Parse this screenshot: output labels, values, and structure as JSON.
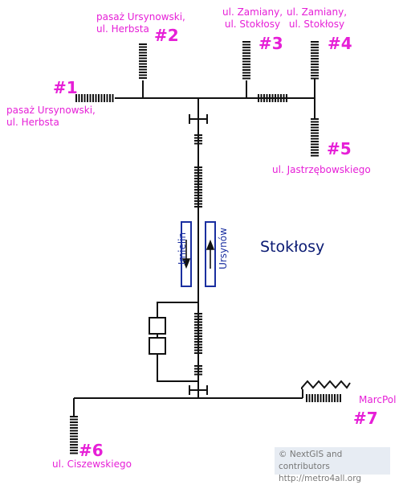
{
  "colors": {
    "accent": "#e61fd7",
    "station_name": "#0a1a73",
    "direction": "#1a2fa0",
    "line": "#111111",
    "credit_text": "#777777",
    "credit_bg": "#e7ecf3"
  },
  "station": {
    "name": "Stokłosy"
  },
  "directions": [
    {
      "label": "Imielin",
      "arrow": "down"
    },
    {
      "label": "Ursynów",
      "arrow": "up"
    }
  ],
  "exits": [
    {
      "number": "#1",
      "street_lines": [
        "pasaż Ursynowski,",
        "ul. Herbsta"
      ]
    },
    {
      "number": "#2",
      "street_lines": [
        "pasaż Ursynowski,",
        "ul. Herbsta"
      ]
    },
    {
      "number": "#3",
      "street_lines": [
        "ul. Zamiany,",
        "ul. Stokłosy"
      ]
    },
    {
      "number": "#4",
      "street_lines": [
        "ul. Zamiany,",
        "ul. Stokłosy"
      ]
    },
    {
      "number": "#5",
      "street_lines": [
        "ul. Jastrzębowskiego"
      ]
    },
    {
      "number": "#6",
      "street_lines": [
        "ul. Ciszewskiego"
      ]
    },
    {
      "number": "#7",
      "street_lines": [
        "MarcPol"
      ]
    }
  ],
  "credit": {
    "line1": "© NextGIS and contributors",
    "line2": "http://metro4all.org"
  }
}
